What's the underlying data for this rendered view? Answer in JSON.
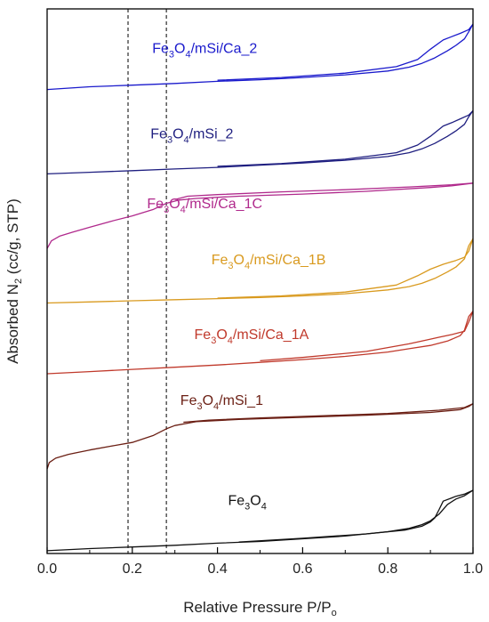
{
  "chart_data": {
    "type": "line",
    "xlabel": {
      "main": "Relative Pressure P/P",
      "sub": "o"
    },
    "ylabel": {
      "pre": "Absorbed N",
      "sub": "2",
      "post": " (cc/g, STP)"
    },
    "xlim": [
      0.0,
      1.0
    ],
    "ylim": [
      0,
      100
    ],
    "xticks": [
      "0.0",
      "0.2",
      "0.4",
      "0.6",
      "0.8",
      "1.0"
    ],
    "x_tick_values": [
      0.0,
      0.2,
      0.4,
      0.6,
      0.8,
      1.0
    ],
    "minor_xtick_step": 0.1,
    "y_ticks_labeled": false,
    "reference_lines": [
      0.19,
      0.28
    ],
    "series": [
      {
        "name": "Fe3O4/mSi/Ca_2",
        "label_parts": [
          [
            "Fe",
            false
          ],
          [
            "3",
            true
          ],
          [
            "O",
            false
          ],
          [
            "4",
            true
          ],
          [
            "/mSi/Ca_2",
            false
          ]
        ],
        "color": "#1a1acc",
        "label_at": [
          0.37,
          91.9
        ],
        "adsorption": [
          [
            0.0,
            85.2
          ],
          [
            0.1,
            85.7
          ],
          [
            0.2,
            86.0
          ],
          [
            0.3,
            86.3
          ],
          [
            0.4,
            86.7
          ],
          [
            0.5,
            87.0
          ],
          [
            0.6,
            87.4
          ],
          [
            0.7,
            87.9
          ],
          [
            0.8,
            88.6
          ],
          [
            0.85,
            89.3
          ],
          [
            0.88,
            90.0
          ],
          [
            0.91,
            91.0
          ],
          [
            0.94,
            92.3
          ],
          [
            0.96,
            93.3
          ],
          [
            0.98,
            94.5
          ],
          [
            0.99,
            95.8
          ],
          [
            1.0,
            97.2
          ]
        ],
        "desorption": [
          [
            1.0,
            97.2
          ],
          [
            0.99,
            96.2
          ],
          [
            0.97,
            95.5
          ],
          [
            0.95,
            94.9
          ],
          [
            0.93,
            94.3
          ],
          [
            0.9,
            92.6
          ],
          [
            0.87,
            90.7
          ],
          [
            0.82,
            89.4
          ],
          [
            0.7,
            88.2
          ],
          [
            0.55,
            87.4
          ],
          [
            0.4,
            86.9
          ]
        ]
      },
      {
        "name": "Fe3O4/mSi_2",
        "label_parts": [
          [
            "Fe",
            false
          ],
          [
            "3",
            true
          ],
          [
            "O",
            false
          ],
          [
            "4",
            true
          ],
          [
            "/mSi_2",
            false
          ]
        ],
        "color": "#1f1f80",
        "label_at": [
          0.34,
          76.2
        ],
        "adsorption": [
          [
            0.0,
            69.7
          ],
          [
            0.1,
            70.0
          ],
          [
            0.2,
            70.3
          ],
          [
            0.3,
            70.6
          ],
          [
            0.4,
            70.9
          ],
          [
            0.5,
            71.3
          ],
          [
            0.6,
            71.7
          ],
          [
            0.7,
            72.2
          ],
          [
            0.8,
            72.9
          ],
          [
            0.85,
            73.6
          ],
          [
            0.88,
            74.3
          ],
          [
            0.91,
            75.3
          ],
          [
            0.94,
            76.6
          ],
          [
            0.96,
            77.6
          ],
          [
            0.98,
            78.8
          ],
          [
            0.99,
            80.2
          ],
          [
            1.0,
            81.3
          ]
        ],
        "desorption": [
          [
            1.0,
            81.3
          ],
          [
            0.99,
            80.5
          ],
          [
            0.97,
            79.8
          ],
          [
            0.95,
            79.1
          ],
          [
            0.93,
            78.5
          ],
          [
            0.9,
            76.6
          ],
          [
            0.87,
            75.0
          ],
          [
            0.82,
            73.6
          ],
          [
            0.7,
            72.4
          ],
          [
            0.55,
            71.6
          ],
          [
            0.4,
            71.1
          ]
        ]
      },
      {
        "name": "Fe3O4/mSi/Ca_1C",
        "label_parts": [
          [
            "Fe",
            false
          ],
          [
            "3",
            true
          ],
          [
            "O",
            false
          ],
          [
            "4",
            true
          ],
          [
            "/mSi/Ca_1C",
            false
          ]
        ],
        "color": "#b0298c",
        "label_at": [
          0.37,
          63.4
        ],
        "adsorption": [
          [
            0.0,
            56.0
          ],
          [
            0.01,
            57.4
          ],
          [
            0.03,
            58.3
          ],
          [
            0.06,
            59.0
          ],
          [
            0.1,
            59.9
          ],
          [
            0.15,
            61.0
          ],
          [
            0.2,
            62.0
          ],
          [
            0.25,
            63.2
          ],
          [
            0.28,
            64.3
          ],
          [
            0.31,
            64.9
          ],
          [
            0.35,
            65.2
          ],
          [
            0.45,
            65.6
          ],
          [
            0.6,
            66.0
          ],
          [
            0.75,
            66.5
          ],
          [
            0.9,
            67.2
          ],
          [
            0.95,
            67.5
          ],
          [
            1.0,
            68.0
          ]
        ],
        "desorption": [
          [
            1.0,
            68.0
          ],
          [
            0.95,
            67.7
          ],
          [
            0.85,
            67.3
          ],
          [
            0.7,
            66.8
          ],
          [
            0.55,
            66.4
          ],
          [
            0.4,
            65.9
          ],
          [
            0.33,
            65.6
          ],
          [
            0.3,
            65.0
          ]
        ]
      },
      {
        "name": "Fe3O4/mSi/Ca_1B",
        "label_parts": [
          [
            "Fe",
            false
          ],
          [
            "3",
            true
          ],
          [
            "O",
            false
          ],
          [
            "4",
            true
          ],
          [
            "/mSi/Ca_1B",
            false
          ]
        ],
        "color": "#d99a1f",
        "label_at": [
          0.52,
          53.1
        ],
        "adsorption": [
          [
            0.0,
            46.0
          ],
          [
            0.1,
            46.2
          ],
          [
            0.2,
            46.4
          ],
          [
            0.3,
            46.6
          ],
          [
            0.4,
            46.8
          ],
          [
            0.5,
            47.0
          ],
          [
            0.6,
            47.3
          ],
          [
            0.7,
            47.7
          ],
          [
            0.8,
            48.4
          ],
          [
            0.85,
            49.0
          ],
          [
            0.88,
            49.6
          ],
          [
            0.91,
            50.5
          ],
          [
            0.94,
            51.7
          ],
          [
            0.96,
            52.6
          ],
          [
            0.98,
            54.1
          ],
          [
            0.99,
            56.5
          ],
          [
            1.0,
            57.8
          ]
        ],
        "desorption": [
          [
            1.0,
            57.8
          ],
          [
            0.99,
            55.5
          ],
          [
            0.98,
            54.4
          ],
          [
            0.96,
            53.8
          ],
          [
            0.93,
            53.1
          ],
          [
            0.9,
            52.2
          ],
          [
            0.87,
            51.0
          ],
          [
            0.82,
            49.3
          ],
          [
            0.7,
            48.0
          ],
          [
            0.55,
            47.3
          ],
          [
            0.4,
            46.9
          ]
        ]
      },
      {
        "name": "Fe3O4/mSi/Ca_1A",
        "label_parts": [
          [
            "Fe",
            false
          ],
          [
            "3",
            true
          ],
          [
            "O",
            false
          ],
          [
            "4",
            true
          ],
          [
            "/mSi/Ca_1A",
            false
          ]
        ],
        "color": "#c0392b",
        "label_at": [
          0.48,
          39.4
        ],
        "adsorption": [
          [
            0.0,
            33.0
          ],
          [
            0.1,
            33.4
          ],
          [
            0.2,
            33.8
          ],
          [
            0.3,
            34.2
          ],
          [
            0.4,
            34.6
          ],
          [
            0.5,
            35.1
          ],
          [
            0.6,
            35.6
          ],
          [
            0.7,
            36.2
          ],
          [
            0.8,
            37.0
          ],
          [
            0.85,
            37.6
          ],
          [
            0.9,
            38.2
          ],
          [
            0.94,
            39.0
          ],
          [
            0.97,
            40.0
          ],
          [
            0.98,
            41.0
          ],
          [
            0.99,
            43.5
          ],
          [
            1.0,
            44.5
          ]
        ],
        "desorption": [
          [
            1.0,
            44.5
          ],
          [
            0.99,
            42.5
          ],
          [
            0.98,
            40.8
          ],
          [
            0.95,
            40.2
          ],
          [
            0.92,
            39.7
          ],
          [
            0.88,
            39.0
          ],
          [
            0.85,
            38.5
          ],
          [
            0.75,
            37.1
          ],
          [
            0.6,
            36.0
          ],
          [
            0.5,
            35.4
          ]
        ]
      },
      {
        "name": "Fe3O4/mSi_1",
        "label_parts": [
          [
            "Fe",
            false
          ],
          [
            "3",
            true
          ],
          [
            "O",
            false
          ],
          [
            "4",
            true
          ],
          [
            "/mSi_1",
            false
          ]
        ],
        "color": "#6b1f14",
        "label_at": [
          0.41,
          27.3
        ],
        "adsorption": [
          [
            0.0,
            15.5
          ],
          [
            0.005,
            16.7
          ],
          [
            0.02,
            17.5
          ],
          [
            0.05,
            18.2
          ],
          [
            0.1,
            19.0
          ],
          [
            0.15,
            19.7
          ],
          [
            0.2,
            20.4
          ],
          [
            0.25,
            21.7
          ],
          [
            0.28,
            22.9
          ],
          [
            0.3,
            23.5
          ],
          [
            0.35,
            24.2
          ],
          [
            0.45,
            24.6
          ],
          [
            0.6,
            25.0
          ],
          [
            0.75,
            25.4
          ],
          [
            0.9,
            25.9
          ],
          [
            0.97,
            26.4
          ],
          [
            0.99,
            27.0
          ],
          [
            1.0,
            27.5
          ]
        ],
        "desorption": [
          [
            1.0,
            27.5
          ],
          [
            0.98,
            26.8
          ],
          [
            0.92,
            26.3
          ],
          [
            0.8,
            25.7
          ],
          [
            0.65,
            25.3
          ],
          [
            0.5,
            24.9
          ],
          [
            0.38,
            24.5
          ],
          [
            0.32,
            24.1
          ]
        ]
      },
      {
        "name": "Fe3O4",
        "label_parts": [
          [
            "Fe",
            false
          ],
          [
            "3",
            true
          ],
          [
            "O",
            false
          ],
          [
            "4",
            true
          ]
        ],
        "color": "#111111",
        "label_at": [
          0.47,
          8.9
        ],
        "adsorption": [
          [
            0.0,
            0.5
          ],
          [
            0.1,
            0.9
          ],
          [
            0.2,
            1.2
          ],
          [
            0.3,
            1.5
          ],
          [
            0.4,
            1.9
          ],
          [
            0.5,
            2.2
          ],
          [
            0.6,
            2.7
          ],
          [
            0.7,
            3.2
          ],
          [
            0.8,
            4.0
          ],
          [
            0.85,
            4.6
          ],
          [
            0.88,
            5.3
          ],
          [
            0.9,
            6.0
          ],
          [
            0.92,
            7.2
          ],
          [
            0.94,
            9.0
          ],
          [
            0.96,
            10.0
          ],
          [
            0.98,
            10.6
          ],
          [
            1.0,
            11.6
          ]
        ],
        "desorption": [
          [
            1.0,
            11.6
          ],
          [
            0.98,
            10.9
          ],
          [
            0.96,
            10.5
          ],
          [
            0.95,
            10.2
          ],
          [
            0.93,
            9.6
          ],
          [
            0.92,
            8.0
          ],
          [
            0.91,
            6.5
          ],
          [
            0.9,
            5.8
          ],
          [
            0.88,
            5.0
          ],
          [
            0.84,
            4.3
          ],
          [
            0.75,
            3.6
          ],
          [
            0.6,
            2.8
          ],
          [
            0.45,
            2.1
          ]
        ]
      }
    ]
  }
}
